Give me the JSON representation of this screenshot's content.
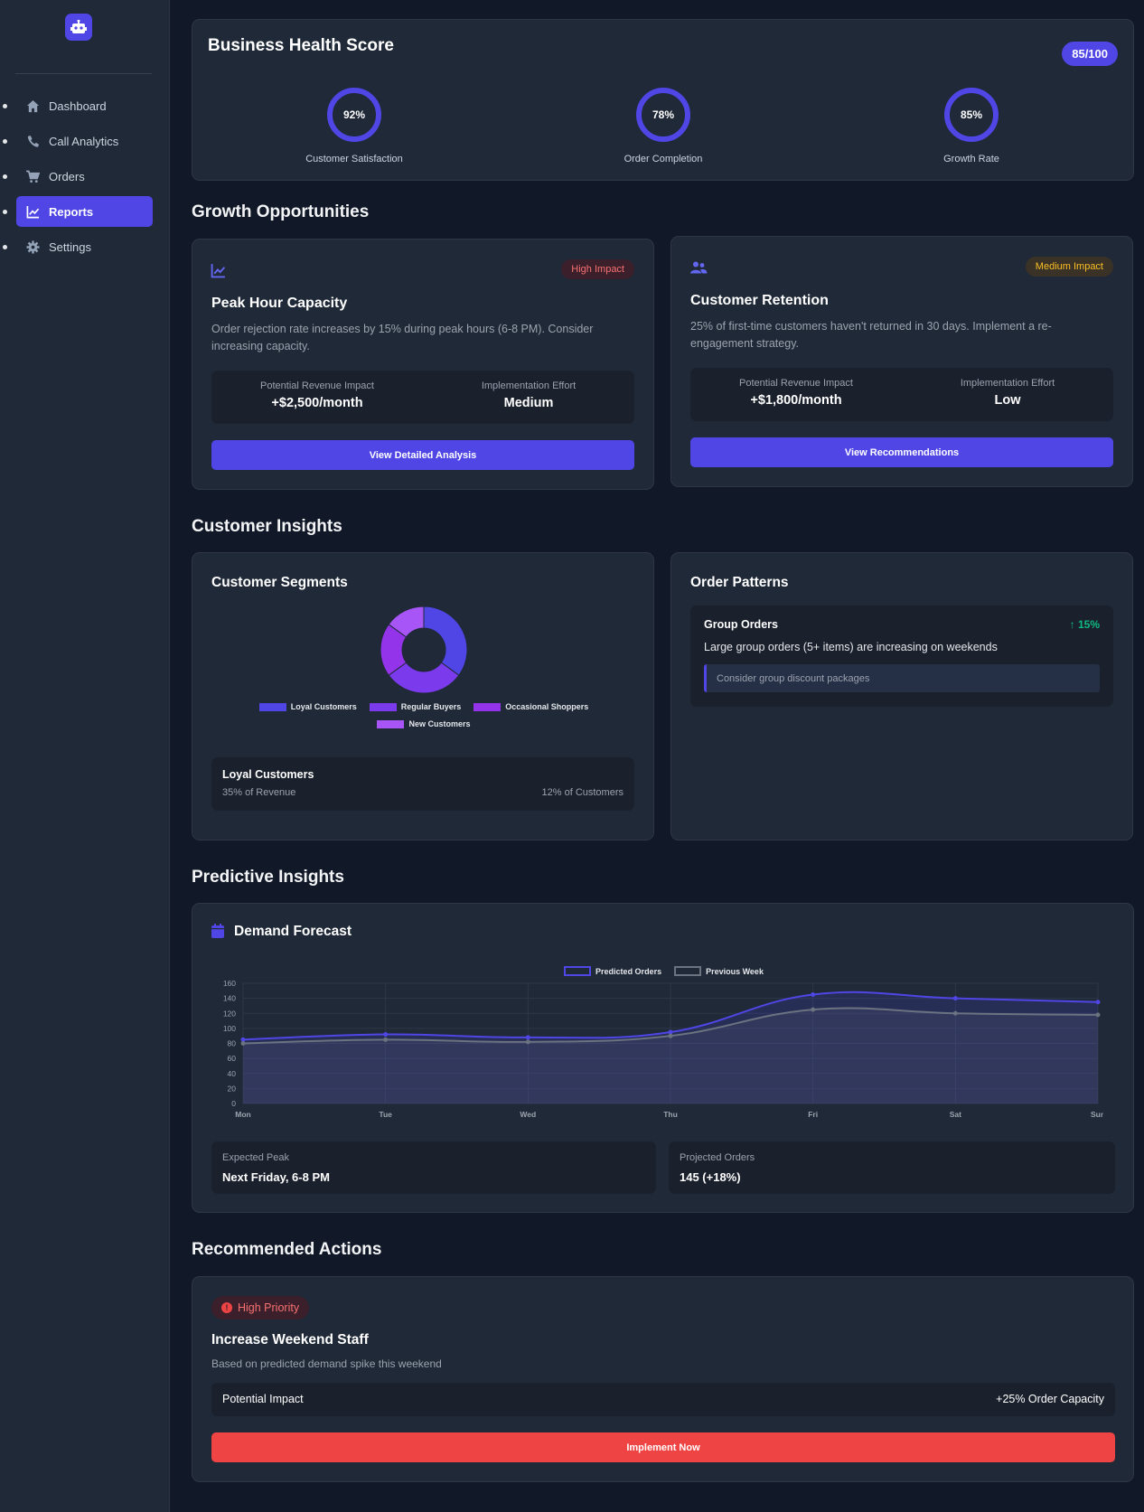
{
  "sidebar": {
    "logo_icon": "robot-icon",
    "items": [
      {
        "label": "Dashboard",
        "icon": "home-icon",
        "active": false
      },
      {
        "label": "Call Analytics",
        "icon": "phone-icon",
        "active": false
      },
      {
        "label": "Orders",
        "icon": "cart-icon",
        "active": false
      },
      {
        "label": "Reports",
        "icon": "chart-line-icon",
        "active": true
      },
      {
        "label": "Settings",
        "icon": "gear-icon",
        "active": false
      }
    ]
  },
  "health": {
    "title": "Business Health Score",
    "score": "85/100",
    "gauges": [
      {
        "value": "92%",
        "label": "Customer Satisfaction"
      },
      {
        "value": "78%",
        "label": "Order Completion"
      },
      {
        "value": "85%",
        "label": "Growth Rate"
      }
    ]
  },
  "growth": {
    "title": "Growth Opportunities",
    "cards": [
      {
        "icon": "chart-line-icon",
        "impact": "High Impact",
        "title": "Peak Hour Capacity",
        "description": "Order rejection rate increases by 15% during peak hours (6-8 PM). Consider increasing capacity.",
        "revenue_label": "Potential Revenue Impact",
        "revenue_value": "+$2,500/month",
        "effort_label": "Implementation Effort",
        "effort_value": "Medium",
        "button": "View Detailed Analysis"
      },
      {
        "icon": "users-icon",
        "impact": "Medium Impact",
        "title": "Customer Retention",
        "description": "25% of first-time customers haven't returned in 30 days. Implement a re-engagement strategy.",
        "revenue_label": "Potential Revenue Impact",
        "revenue_value": "+$1,800/month",
        "effort_label": "Implementation Effort",
        "effort_value": "Low",
        "button": "View Recommendations"
      }
    ]
  },
  "insights": {
    "title": "Customer Insights",
    "segments": {
      "title": "Customer Segments",
      "detail_title": "Loyal Customers",
      "detail_revenue": "35% of Revenue",
      "detail_share": "12% of Customers"
    },
    "patterns": {
      "title": "Order Patterns",
      "item_title": "Group Orders",
      "item_growth": "↑ 15%",
      "item_desc": "Large group orders (5+ items) are increasing on weekends",
      "item_suggestion": "Consider group discount packages"
    }
  },
  "predictive": {
    "title": "Predictive Insights",
    "forecast_title": "Demand Forecast",
    "calendar_icon": "calendar-icon",
    "peak_label": "Expected Peak",
    "peak_value": "Next Friday, 6-8 PM",
    "projected_label": "Projected Orders",
    "projected_value": "145 (+18%)"
  },
  "actions": {
    "title": "Recommended Actions",
    "priority": "High Priority",
    "action_title": "Increase Weekend Staff",
    "action_desc": "Based on predicted demand spike this weekend",
    "impact_label": "Potential Impact",
    "impact_value": "+25% Order Capacity",
    "button": "Implement Now"
  },
  "colors": {
    "accent": "#4f46e5",
    "danger": "#ef4444",
    "success": "#10b981",
    "warning": "#fbbf24"
  },
  "chart_data": [
    {
      "type": "pie",
      "categories": [
        "Loyal Customers",
        "Regular Buyers",
        "Occasional Shoppers",
        "New Customers"
      ],
      "values": [
        35,
        30,
        20,
        15
      ],
      "colors": [
        "#4f46e5",
        "#7c3aed",
        "#9333ea",
        "#a855f7"
      ],
      "legend": "bottom"
    },
    {
      "type": "line",
      "categories": [
        "Mon",
        "Tue",
        "Wed",
        "Thu",
        "Fri",
        "Sat",
        "Sun"
      ],
      "series": [
        {
          "name": "Predicted Orders",
          "values": [
            85,
            92,
            88,
            95,
            145,
            140,
            135
          ],
          "color": "#4f46e5"
        },
        {
          "name": "Previous Week",
          "values": [
            80,
            85,
            82,
            90,
            125,
            120,
            118
          ],
          "color": "#6b7280"
        }
      ],
      "yticks": [
        0,
        20,
        40,
        60,
        80,
        100,
        120,
        140,
        160
      ],
      "ylim": [
        0,
        160
      ],
      "grid": true,
      "legend": "top"
    }
  ]
}
